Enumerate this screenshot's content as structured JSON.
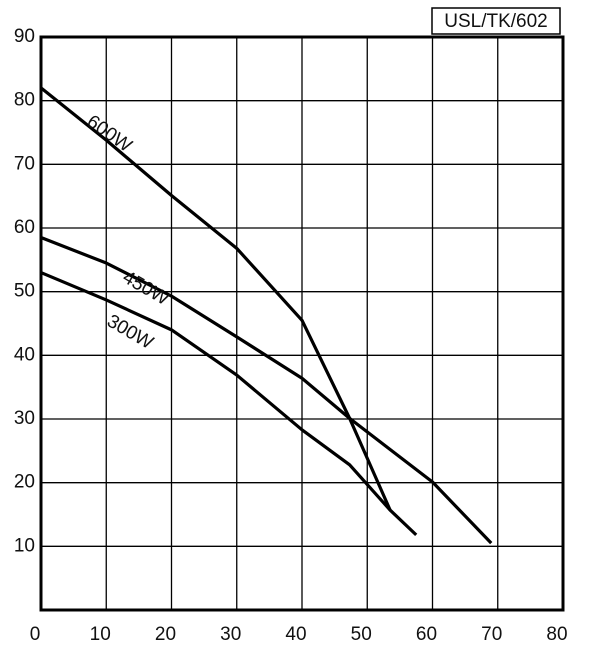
{
  "chart_data": {
    "type": "line",
    "title": "USL/TK/602",
    "xlim": [
      0,
      80
    ],
    "xticks": [
      0,
      10,
      20,
      30,
      40,
      50,
      60,
      70,
      80
    ],
    "ylim": [
      0,
      90
    ],
    "yticks": [
      10,
      20,
      30,
      40,
      50,
      60,
      70,
      80,
      90
    ],
    "grid": true,
    "series": [
      {
        "name": "600W",
        "color": "#000000",
        "x": [
          0,
          10,
          20,
          30,
          40,
          47.3,
          53.5
        ],
        "values": [
          82,
          73.8,
          65.1,
          56.8,
          45.5,
          30.1,
          15.7
        ]
      },
      {
        "name": "450W",
        "color": "#000000",
        "x": [
          0,
          10,
          20,
          30,
          40,
          47.3,
          60,
          69
        ],
        "values": [
          58.5,
          54.5,
          49.3,
          42.9,
          36.4,
          30.1,
          20.1,
          10.5
        ]
      },
      {
        "name": "300W",
        "color": "#000000",
        "x": [
          0,
          10,
          20,
          30,
          40,
          47.3,
          53.5,
          57.5
        ],
        "values": [
          53,
          48.7,
          44,
          36.9,
          28.3,
          22.8,
          15.7,
          11.8
        ]
      }
    ]
  }
}
